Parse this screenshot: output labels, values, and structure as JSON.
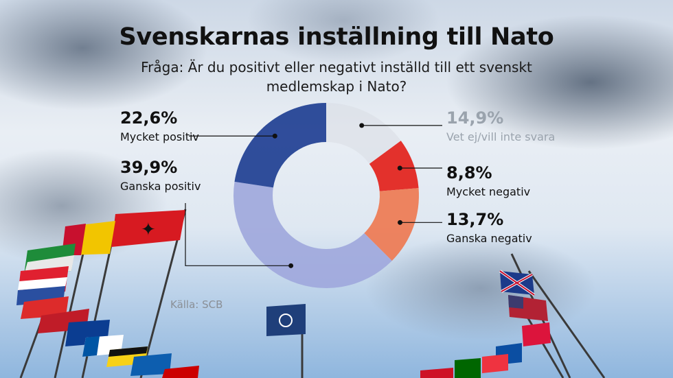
{
  "title": "Svenskarnas inställning till Nato",
  "subtitle": "Fråga: Är du positivt eller negativt inställd till ett svenskt medlemskap i Nato?",
  "source": "Källa: SCB",
  "chart_data": {
    "type": "pie",
    "title": "Svenskarnas inställning till Nato",
    "slices": [
      {
        "label": "Vet ej/vill inte svara",
        "value": 14.9,
        "value_label": "14,9%",
        "color": "#d9dde3"
      },
      {
        "label": "Mycket negativ",
        "value": 8.8,
        "value_label": "8,8%",
        "color": "#e3211b"
      },
      {
        "label": "Ganska negativ",
        "value": 13.7,
        "value_label": "13,7%",
        "color": "#ee7a52"
      },
      {
        "label": "Ganska positiv",
        "value": 39.9,
        "value_label": "39,9%",
        "color": "#9fa8dc"
      },
      {
        "label": "Mycket positiv",
        "value": 22.6,
        "value_label": "22,6%",
        "color": "#1f3f93"
      }
    ]
  }
}
